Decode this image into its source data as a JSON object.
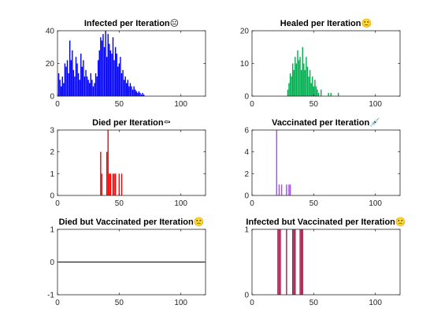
{
  "figure": {
    "background": "#ffffff",
    "axes_color": "#262626"
  },
  "chart_data": [
    {
      "type": "bar",
      "title": "Infected per Iteration",
      "title_emoji": "😐",
      "color": "#0000ff",
      "xlim": [
        0,
        120
      ],
      "ylim": [
        0,
        40
      ],
      "xticks": [
        0,
        50,
        100
      ],
      "yticks": [
        0,
        20,
        40
      ],
      "x": [
        1,
        2,
        3,
        4,
        5,
        6,
        7,
        8,
        9,
        10,
        11,
        12,
        13,
        14,
        15,
        16,
        17,
        18,
        19,
        20,
        21,
        22,
        23,
        24,
        25,
        26,
        27,
        28,
        29,
        30,
        31,
        32,
        33,
        34,
        35,
        36,
        37,
        38,
        39,
        40,
        41,
        42,
        43,
        44,
        45,
        46,
        47,
        48,
        49,
        50,
        51,
        52,
        53,
        54,
        55,
        56,
        57,
        58,
        59,
        60,
        61,
        62,
        63,
        64,
        65,
        66,
        67,
        68,
        69,
        70
      ],
      "values": [
        14,
        10,
        6,
        12,
        8,
        20,
        18,
        22,
        14,
        34,
        22,
        28,
        16,
        12,
        24,
        20,
        14,
        10,
        26,
        18,
        22,
        12,
        16,
        12,
        10,
        8,
        14,
        10,
        6,
        8,
        14,
        12,
        22,
        28,
        36,
        34,
        38,
        30,
        40,
        24,
        38,
        32,
        28,
        26,
        36,
        22,
        30,
        26,
        18,
        20,
        24,
        14,
        16,
        10,
        12,
        8,
        10,
        6,
        8,
        6,
        4,
        6,
        4,
        3,
        2,
        3,
        2,
        1,
        2,
        1
      ]
    },
    {
      "type": "bar",
      "title": "Healed per Iteration",
      "title_emoji": "🙂",
      "color": "#00b050",
      "xlim": [
        0,
        120
      ],
      "ylim": [
        0,
        20
      ],
      "xticks": [
        0,
        50,
        100
      ],
      "yticks": [
        0,
        10,
        20
      ],
      "x": [
        29,
        30,
        31,
        32,
        33,
        34,
        35,
        36,
        37,
        38,
        39,
        40,
        41,
        42,
        43,
        44,
        45,
        46,
        47,
        48,
        49,
        50,
        51,
        52,
        53,
        54,
        56,
        62,
        64,
        70
      ],
      "values": [
        2,
        4,
        7,
        6,
        10,
        8,
        12,
        10,
        14,
        11,
        12,
        8,
        15,
        10,
        8,
        12,
        9,
        6,
        8,
        4,
        6,
        3,
        5,
        3,
        2,
        1,
        2,
        1,
        1,
        1
      ]
    },
    {
      "type": "bar",
      "title": "Died per Iteration",
      "title_emoji": "⚰",
      "color": "#ff0000",
      "xlim": [
        0,
        120
      ],
      "ylim": [
        0,
        3
      ],
      "xticks": [
        0,
        50,
        100
      ],
      "yticks": [
        0,
        1,
        2,
        3
      ],
      "x": [
        35,
        36,
        40,
        41,
        42,
        43,
        45,
        46,
        47,
        50,
        52
      ],
      "values": [
        2,
        1,
        2,
        3,
        1,
        1,
        1,
        1,
        1,
        1,
        1
      ]
    },
    {
      "type": "bar",
      "title": "Vaccinated per Iteration",
      "title_emoji": "💉",
      "color": "#a050e0",
      "xlim": [
        0,
        120
      ],
      "ylim": [
        0,
        6
      ],
      "xticks": [
        0,
        50,
        100
      ],
      "yticks": [
        0,
        2,
        4,
        6
      ],
      "x": [
        20,
        22,
        24,
        28,
        30,
        31,
        32,
        33,
        34,
        35,
        36,
        37,
        38,
        39,
        40
      ],
      "values": [
        6,
        1,
        1,
        1,
        1,
        1,
        0,
        0,
        0,
        0,
        0,
        0,
        0,
        0,
        0
      ]
    },
    {
      "type": "line",
      "title": "Died but Vaccinated per Iteration",
      "title_emoji": "🙁",
      "color": "#000000",
      "xlim": [
        0,
        120
      ],
      "ylim": [
        -1,
        1
      ],
      "xticks": [
        0,
        50,
        100
      ],
      "yticks": [
        -1,
        0,
        1
      ],
      "x": [
        0,
        120
      ],
      "values": [
        0,
        0
      ]
    },
    {
      "type": "bar",
      "title": "Infected but Vaccinated per Iteration",
      "title_emoji": "🙁",
      "color": "#a2214f",
      "xlim": [
        0,
        120
      ],
      "ylim": [
        0,
        1
      ],
      "xticks": [
        0,
        50,
        100
      ],
      "yticks": [
        0,
        1
      ],
      "x": [
        21,
        22,
        23,
        28,
        33,
        34,
        35,
        39,
        40,
        41
      ],
      "values": [
        1,
        1,
        1,
        1,
        1,
        1,
        1,
        1,
        1,
        1
      ]
    }
  ]
}
